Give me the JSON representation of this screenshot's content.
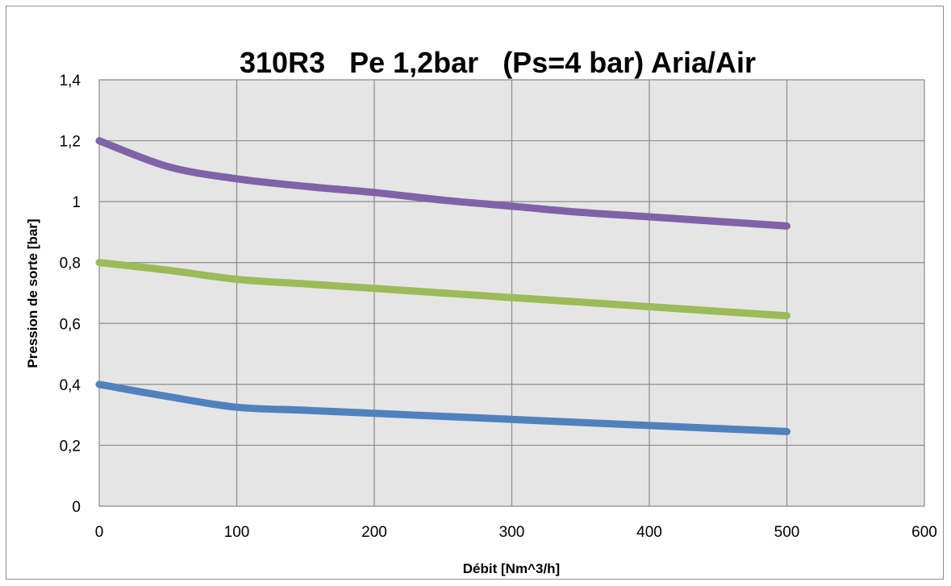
{
  "chart_data": {
    "type": "line",
    "title": "310R3   Pe 1,2bar   (Ps=4 bar) Aria/Air",
    "xlabel": "Débit [Nm^3/h]",
    "ylabel": "Pression de sorte [bar]",
    "xlim": [
      0,
      600
    ],
    "ylim": [
      0,
      1.4
    ],
    "xticks": [
      0,
      100,
      200,
      300,
      400,
      500,
      600
    ],
    "xtick_labels": [
      "0",
      "100",
      "200",
      "300",
      "400",
      "500",
      "600"
    ],
    "yticks": [
      0,
      0.2,
      0.4,
      0.6,
      0.8,
      1.0,
      1.2,
      1.4
    ],
    "ytick_labels": [
      "0",
      "0,2",
      "0,4",
      "0,6",
      "0,8",
      "1",
      "1,2",
      "1,4"
    ],
    "grid": true,
    "legend": "none",
    "plot_background": "#e5e5e5",
    "grid_color": "#8c8c8c",
    "series": [
      {
        "color": "#7f62a8",
        "x": [
          0,
          50,
          100,
          150,
          200,
          250,
          300,
          350,
          400,
          450,
          500
        ],
        "y": [
          1.2,
          1.115,
          1.075,
          1.05,
          1.03,
          1.005,
          0.985,
          0.965,
          0.95,
          0.935,
          0.92
        ]
      },
      {
        "color": "#9bbb59",
        "x": [
          0,
          50,
          100,
          150,
          200,
          250,
          300,
          350,
          400,
          450,
          500
        ],
        "y": [
          0.8,
          0.775,
          0.745,
          0.73,
          0.715,
          0.7,
          0.685,
          0.67,
          0.655,
          0.64,
          0.625
        ]
      },
      {
        "color": "#4f81bd",
        "x": [
          0,
          50,
          100,
          150,
          200,
          250,
          300,
          350,
          400,
          450,
          500
        ],
        "y": [
          0.4,
          0.36,
          0.325,
          0.315,
          0.305,
          0.295,
          0.285,
          0.275,
          0.265,
          0.255,
          0.245
        ]
      }
    ]
  }
}
